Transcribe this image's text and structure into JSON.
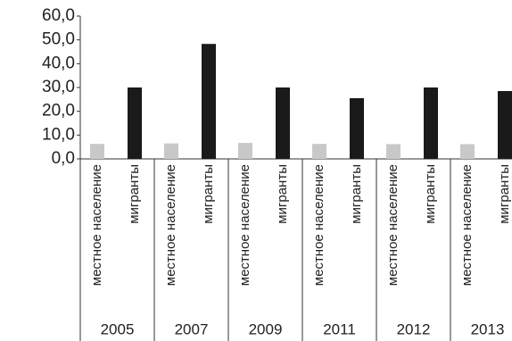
{
  "chart_data": {
    "type": "bar",
    "categories": [
      "2005",
      "2007",
      "2009",
      "2011",
      "2012",
      "2013"
    ],
    "series": [
      {
        "name": "местное население",
        "color": "#c8c8c8",
        "values": [
          6.3,
          6.5,
          6.7,
          6.3,
          6.2,
          6.2
        ]
      },
      {
        "name": "мигранты",
        "color": "#1a1a1a",
        "values": [
          30.0,
          48.3,
          30.0,
          25.5,
          30.0,
          28.5
        ]
      }
    ],
    "ylim": [
      0,
      60
    ],
    "yticks": [
      {
        "value": 0,
        "label": "0,0"
      },
      {
        "value": 10,
        "label": "10,0"
      },
      {
        "value": 20,
        "label": "20,0"
      },
      {
        "value": 30,
        "label": "30,0"
      },
      {
        "value": 40,
        "label": "40,0"
      },
      {
        "value": 50,
        "label": "50,0"
      },
      {
        "value": 60,
        "label": "60,0"
      }
    ],
    "grid": false
  }
}
